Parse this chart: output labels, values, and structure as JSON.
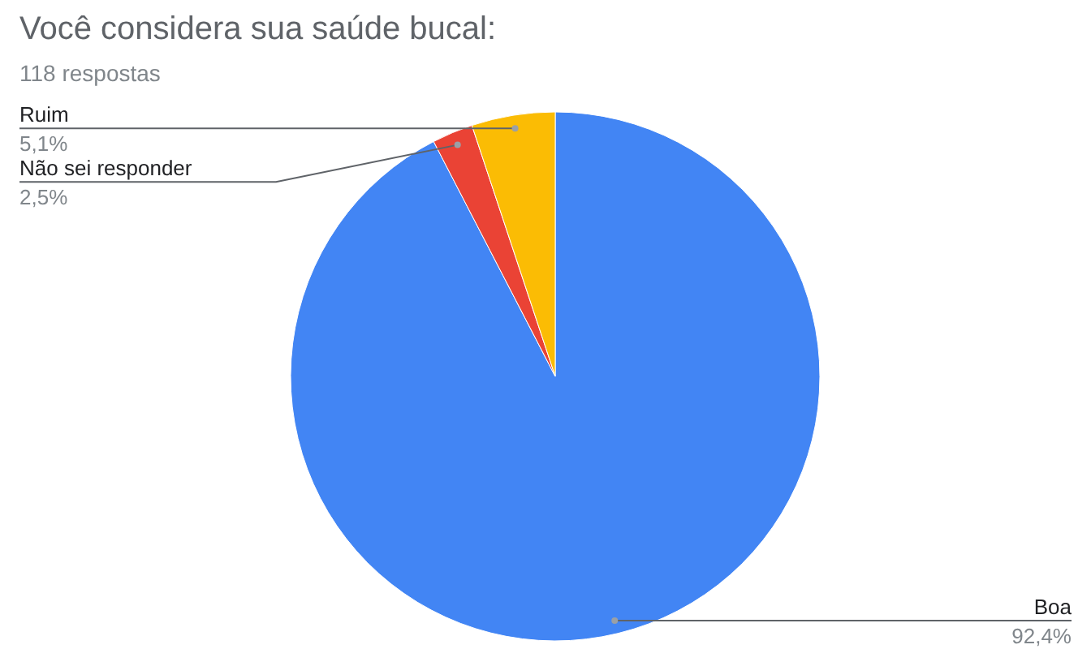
{
  "chart_data": {
    "type": "pie",
    "title": "Você considera sua saúde bucal:",
    "subtitle": "118 respostas",
    "categories": [
      "Boa",
      "Não sei responder",
      "Ruim"
    ],
    "values": [
      92.4,
      2.5,
      5.1
    ],
    "colors": [
      "#4285f4",
      "#ea4335",
      "#fbbc04"
    ],
    "value_labels": [
      "92,4%",
      "2,5%",
      "5,1%"
    ],
    "legend": false
  }
}
